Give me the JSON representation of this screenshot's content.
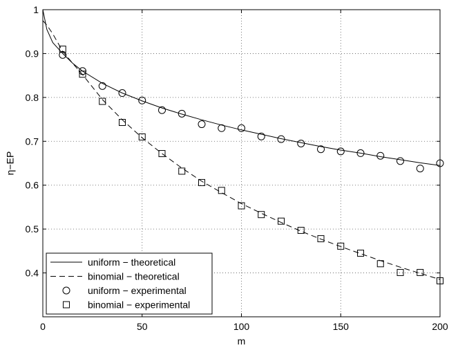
{
  "chart_data": {
    "type": "line",
    "xlabel": "m",
    "ylabel": "η−EP",
    "xlim": [
      0,
      200
    ],
    "ylim": [
      0.3,
      1.0
    ],
    "xticks": [
      0,
      50,
      100,
      150,
      200
    ],
    "yticks": [
      0.4,
      0.5,
      0.6,
      0.7,
      0.8,
      0.9,
      1.0
    ],
    "xtick_labels": [
      "0",
      "50",
      "100",
      "150",
      "200"
    ],
    "ytick_labels": [
      "0.4",
      "0.5",
      "0.6",
      "0.7",
      "0.8",
      "0.9",
      "1"
    ],
    "grid": true,
    "legend_position": "bottom-left",
    "series": [
      {
        "name": "uniform − theoretical",
        "style": "solid",
        "x": [
          0,
          2,
          5,
          10,
          15,
          20,
          30,
          40,
          50,
          60,
          70,
          80,
          90,
          100,
          110,
          120,
          130,
          140,
          150,
          160,
          170,
          180,
          190,
          200
        ],
        "y": [
          1.0,
          0.955,
          0.925,
          0.9,
          0.878,
          0.86,
          0.832,
          0.81,
          0.792,
          0.776,
          0.762,
          0.749,
          0.737,
          0.726,
          0.716,
          0.706,
          0.697,
          0.688,
          0.68,
          0.673,
          0.665,
          0.658,
          0.651,
          0.645
        ]
      },
      {
        "name": "binomial − theoretical",
        "style": "dashed",
        "x": [
          0,
          2,
          5,
          10,
          15,
          20,
          30,
          40,
          50,
          60,
          70,
          80,
          90,
          100,
          110,
          120,
          130,
          140,
          150,
          160,
          170,
          180,
          190,
          200
        ],
        "y": [
          0.975,
          0.965,
          0.945,
          0.905,
          0.878,
          0.852,
          0.795,
          0.749,
          0.708,
          0.672,
          0.639,
          0.609,
          0.583,
          0.558,
          0.536,
          0.515,
          0.495,
          0.477,
          0.46,
          0.444,
          0.428,
          0.413,
          0.399,
          0.385
        ]
      },
      {
        "name": "uniform − experimental",
        "marker": "circle",
        "x": [
          10,
          20,
          30,
          40,
          50,
          60,
          70,
          80,
          90,
          100,
          110,
          120,
          130,
          140,
          150,
          160,
          170,
          180,
          190,
          200
        ],
        "y": [
          0.897,
          0.86,
          0.826,
          0.81,
          0.793,
          0.771,
          0.763,
          0.739,
          0.73,
          0.73,
          0.711,
          0.705,
          0.695,
          0.682,
          0.677,
          0.673,
          0.667,
          0.655,
          0.638,
          0.65
        ]
      },
      {
        "name": "binomial − experimental",
        "marker": "square",
        "x": [
          10,
          20,
          30,
          40,
          50,
          60,
          70,
          80,
          90,
          100,
          110,
          120,
          130,
          140,
          150,
          160,
          170,
          180,
          190,
          200
        ],
        "y": [
          0.91,
          0.853,
          0.791,
          0.743,
          0.71,
          0.672,
          0.632,
          0.606,
          0.588,
          0.553,
          0.533,
          0.518,
          0.497,
          0.478,
          0.461,
          0.445,
          0.421,
          0.401,
          0.401,
          0.382
        ]
      }
    ]
  }
}
